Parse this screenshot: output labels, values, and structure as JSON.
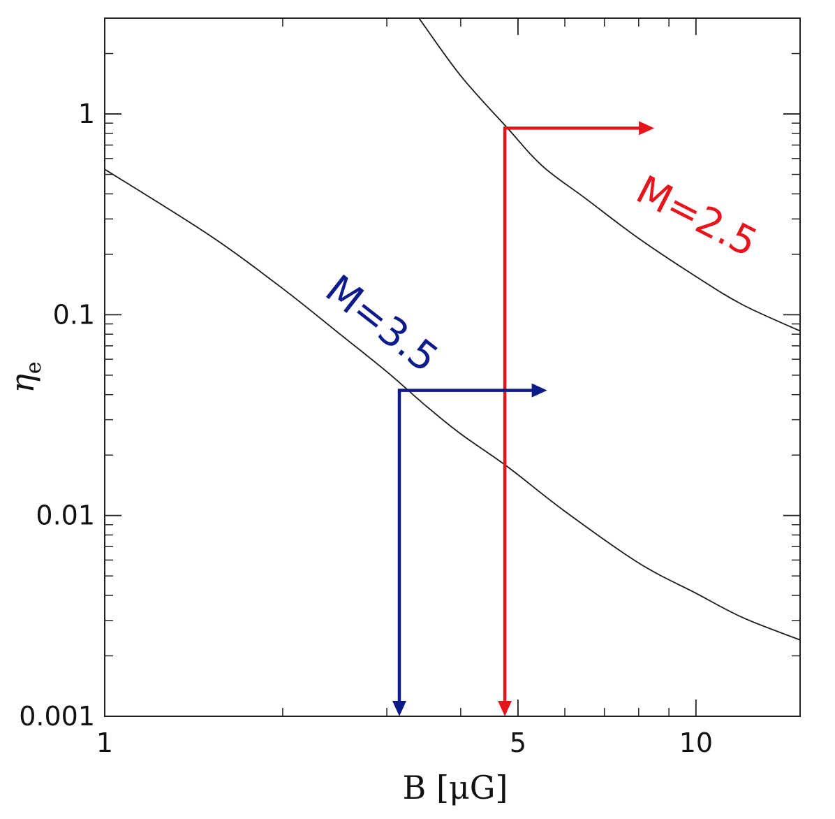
{
  "chart_data": {
    "type": "line",
    "title": "",
    "xlabel": "B  [μG]",
    "ylabel": "η",
    "ylabel_subscript": "e",
    "x_scale": "log",
    "y_scale": "log",
    "xlim": [
      1,
      15
    ],
    "ylim": [
      0.001,
      3
    ],
    "x_ticks": [
      {
        "value": 1,
        "label": "1"
      },
      {
        "value": 5,
        "label": "5"
      },
      {
        "value": 10,
        "label": "10"
      }
    ],
    "y_ticks": [
      {
        "value": 0.001,
        "label": "0.001"
      },
      {
        "value": 0.01,
        "label": "0.01"
      },
      {
        "value": 0.1,
        "label": "0.1"
      },
      {
        "value": 1,
        "label": "1"
      }
    ],
    "grid": false,
    "series": [
      {
        "label": "M=2.5",
        "color": "#e8141c",
        "label_at": {
          "x": 9.8,
          "y": 0.27
        },
        "label_rotation": 27,
        "x": [
          3.4,
          4.0,
          4.8,
          5.5,
          6.5,
          8.0,
          10.0,
          12.0,
          15.0
        ],
        "y": [
          3.0,
          1.55,
          0.85,
          0.55,
          0.38,
          0.24,
          0.155,
          0.112,
          0.083
        ]
      },
      {
        "label": "M=3.5",
        "color": "#0d1a8a",
        "label_at": {
          "x": 2.85,
          "y": 0.08
        },
        "label_rotation": 38,
        "x": [
          1.0,
          1.5,
          2.0,
          2.5,
          3.0,
          3.5,
          4.0,
          4.8,
          6.0,
          8.0,
          10.0,
          12.0,
          15.0
        ],
        "y": [
          0.53,
          0.25,
          0.135,
          0.08,
          0.052,
          0.035,
          0.0255,
          0.0175,
          0.0105,
          0.0058,
          0.0041,
          0.0031,
          0.0024
        ]
      }
    ],
    "annotations": [
      {
        "series": "M=2.5",
        "color": "#e8141c",
        "x": 4.75,
        "y": 0.85,
        "arrow_right_to_x": 8.5,
        "arrow_down_to_y": 0.001
      },
      {
        "series": "M=3.5",
        "color": "#0d1a8a",
        "x": 3.15,
        "y": 0.042,
        "arrow_right_to_x": 5.6,
        "arrow_down_to_y": 0.001
      }
    ]
  }
}
